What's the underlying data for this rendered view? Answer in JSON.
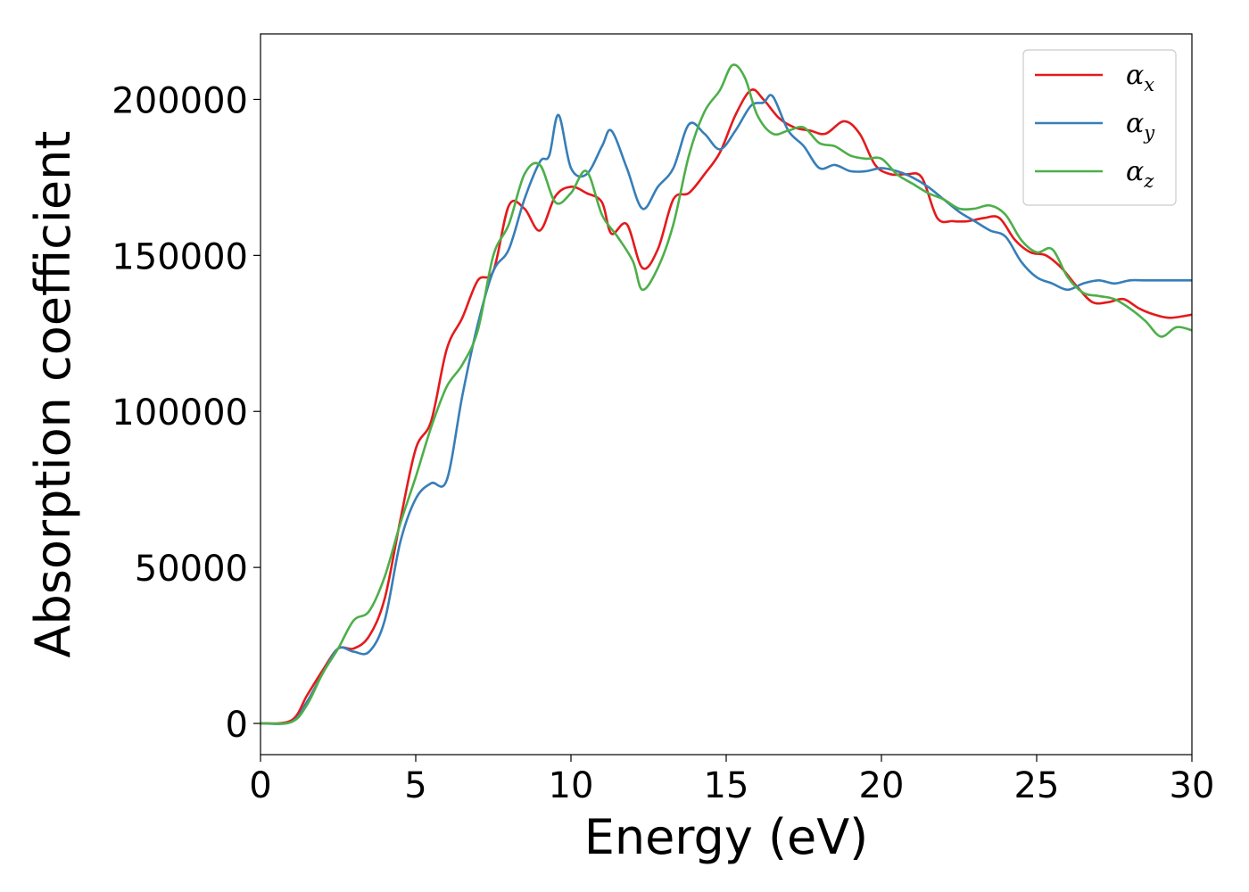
{
  "chart_data": {
    "type": "line",
    "title": "",
    "xlabel": "Energy (eV)",
    "ylabel": "Absorption coefficient",
    "xlim": [
      0,
      30
    ],
    "ylim": [
      -10000,
      221000
    ],
    "xticks": [
      0,
      5,
      10,
      15,
      20,
      25,
      30
    ],
    "xtick_labels": [
      "0",
      "5",
      "10",
      "15",
      "20",
      "25",
      "30"
    ],
    "yticks": [
      0,
      50000,
      100000,
      150000,
      200000
    ],
    "ytick_labels": [
      "0",
      "50000",
      "100000",
      "150000",
      "200000"
    ],
    "grid": false,
    "legend_position": "top-right",
    "series": [
      {
        "name": "α_x",
        "legend_symbol": "α",
        "legend_subscript": "x",
        "color": "#e41a1c",
        "x": [
          0,
          1.0,
          1.5,
          2.0,
          2.5,
          3.0,
          3.5,
          4.0,
          4.5,
          5.0,
          5.5,
          6.0,
          6.5,
          7.0,
          7.5,
          8.0,
          8.5,
          9.0,
          9.5,
          10.0,
          10.5,
          11.0,
          11.3,
          11.8,
          12.3,
          12.8,
          13.3,
          13.8,
          14.3,
          14.8,
          15.3,
          15.8,
          16.2,
          16.7,
          17.2,
          17.7,
          18.2,
          18.8,
          19.3,
          19.8,
          20.3,
          20.8,
          21.3,
          21.8,
          22.3,
          22.8,
          23.3,
          23.8,
          24.3,
          24.8,
          25.3,
          25.8,
          26.3,
          26.8,
          27.3,
          27.8,
          28.3,
          28.8,
          29.3,
          30.0
        ],
        "y": [
          0,
          1000,
          9000,
          17000,
          24000,
          24000,
          28000,
          40000,
          65000,
          88000,
          97000,
          120000,
          130000,
          142000,
          145000,
          166000,
          165000,
          158000,
          169000,
          172000,
          170000,
          167000,
          157000,
          160000,
          146000,
          152000,
          168000,
          170000,
          176000,
          183000,
          195000,
          203000,
          200000,
          194000,
          191000,
          190000,
          189000,
          193000,
          189000,
          179000,
          176000,
          176000,
          175000,
          162000,
          161000,
          161000,
          162000,
          162000,
          155000,
          151000,
          150000,
          146000,
          140000,
          135000,
          135000,
          136000,
          133000,
          131000,
          130000,
          131000
        ]
      },
      {
        "name": "α_y",
        "legend_symbol": "α",
        "legend_subscript": "y",
        "color": "#377eb8",
        "x": [
          0,
          1.0,
          1.5,
          2.0,
          2.5,
          3.0,
          3.5,
          4.0,
          4.5,
          5.0,
          5.5,
          6.0,
          6.5,
          7.0,
          7.5,
          8.0,
          8.5,
          9.0,
          9.3,
          9.6,
          10.0,
          10.5,
          11.0,
          11.3,
          11.8,
          12.3,
          12.8,
          13.3,
          13.8,
          14.3,
          14.8,
          15.3,
          15.8,
          16.2,
          16.5,
          17.0,
          17.5,
          18.0,
          18.5,
          19.0,
          19.5,
          20.0,
          20.5,
          21.0,
          21.5,
          22.0,
          22.5,
          23.0,
          23.5,
          24.0,
          24.5,
          25.0,
          25.5,
          26.0,
          26.5,
          27.0,
          27.5,
          28.0,
          28.5,
          29.0,
          29.5,
          30.0
        ],
        "y": [
          0,
          500,
          7000,
          16000,
          24000,
          23000,
          23000,
          33000,
          58000,
          72000,
          77000,
          78000,
          105000,
          128000,
          145000,
          152000,
          168000,
          180000,
          182000,
          195000,
          178000,
          176000,
          185000,
          190000,
          178000,
          165000,
          172000,
          178000,
          192000,
          189000,
          184000,
          190000,
          198000,
          199000,
          201000,
          190000,
          185000,
          178000,
          179000,
          177000,
          177000,
          178000,
          177000,
          175000,
          172000,
          168000,
          164000,
          161000,
          158000,
          156000,
          148000,
          143000,
          141000,
          139000,
          141000,
          142000,
          141000,
          142000,
          142000,
          142000,
          142000,
          142000
        ]
      },
      {
        "name": "α_z",
        "legend_symbol": "α",
        "legend_subscript": "z",
        "color": "#4daf4a",
        "x": [
          0,
          1.0,
          1.5,
          2.0,
          2.5,
          3.0,
          3.5,
          4.0,
          4.5,
          5.0,
          5.5,
          6.0,
          6.5,
          7.0,
          7.5,
          8.0,
          8.5,
          9.0,
          9.5,
          10.0,
          10.5,
          11.0,
          11.5,
          12.0,
          12.3,
          12.8,
          13.3,
          13.8,
          14.3,
          14.8,
          15.2,
          15.6,
          16.0,
          16.5,
          17.0,
          17.5,
          18.0,
          18.5,
          19.0,
          19.5,
          20.0,
          20.5,
          21.0,
          21.5,
          22.0,
          22.5,
          23.0,
          23.5,
          24.0,
          24.5,
          25.0,
          25.5,
          26.0,
          26.5,
          27.0,
          27.5,
          28.0,
          28.5,
          29.0,
          29.5,
          30.0
        ],
        "y": [
          0,
          500,
          6000,
          16000,
          24000,
          33000,
          36000,
          47000,
          64000,
          79000,
          95000,
          108000,
          115000,
          126000,
          150000,
          160000,
          176000,
          179000,
          167000,
          170000,
          177000,
          163000,
          156000,
          148000,
          139000,
          146000,
          160000,
          182000,
          196000,
          203000,
          211000,
          207000,
          195000,
          189000,
          190000,
          191000,
          186000,
          185000,
          182000,
          181000,
          181000,
          176000,
          173000,
          170000,
          168000,
          165000,
          165000,
          166000,
          163000,
          155000,
          151000,
          152000,
          143000,
          138000,
          137000,
          136000,
          133000,
          129000,
          124000,
          127000,
          126000
        ]
      }
    ]
  }
}
